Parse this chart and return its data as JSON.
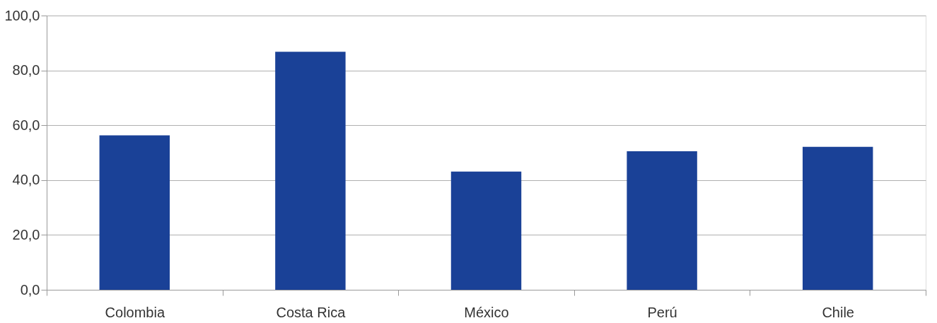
{
  "chart_data": {
    "type": "bar",
    "categories": [
      "Colombia",
      "Costa Rica",
      "México",
      "Perú",
      "Chile"
    ],
    "values": [
      56.3,
      86.8,
      43.1,
      50.5,
      52.1
    ],
    "color": "#1a4197",
    "ylim": [
      0,
      100
    ],
    "yticks": [
      {
        "value": 0,
        "label": "0,0"
      },
      {
        "value": 20,
        "label": "20,0"
      },
      {
        "value": 40,
        "label": "40,0"
      },
      {
        "value": 60,
        "label": "60,0"
      },
      {
        "value": 80,
        "label": "80,0"
      },
      {
        "value": 100,
        "label": "100,0"
      }
    ],
    "grid": "y"
  }
}
